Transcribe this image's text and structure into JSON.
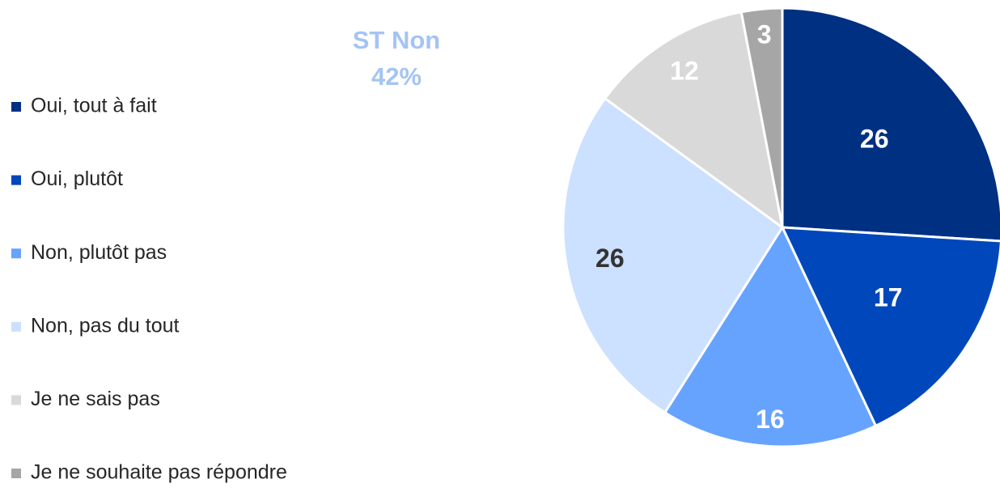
{
  "chart_data": {
    "type": "pie",
    "annotation": [
      "ST Non",
      "42%"
    ],
    "categories": [
      "Oui, tout à fait",
      "Oui, plutôt",
      "Non, plutôt pas",
      "Non, pas du tout",
      "Je ne sais pas",
      "Je ne souhaite pas répondre"
    ],
    "values": [
      26,
      17,
      16,
      26,
      12,
      3
    ],
    "colors": [
      "#003082",
      "#0047bb",
      "#66a3ff",
      "#cce0ff",
      "#d9d9d9",
      "#a6a6a6"
    ],
    "label_colors": [
      "#ffffff",
      "#ffffff",
      "#ffffff",
      "#333333",
      "#ffffff",
      "#ffffff"
    ],
    "legend": "left"
  }
}
